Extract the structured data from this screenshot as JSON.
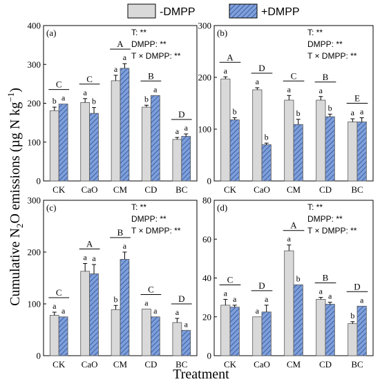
{
  "figure": {
    "legend": [
      {
        "label": "-DMPP",
        "fill": "#d9d9d9",
        "pattern": "solid"
      },
      {
        "label": "+DMPP",
        "fill": "#7f9fd9",
        "pattern": "hatch"
      }
    ],
    "ylabel_prefix": "Cumulative N",
    "ylabel_sub": "2",
    "ylabel_mid": "O emissions (µg N kg",
    "ylabel_sup": "−1",
    "ylabel_suffix": ")",
    "xlabel": "Treatment"
  },
  "chart_data": [
    {
      "type": "bar",
      "panel": "(a)",
      "categories": [
        "CK",
        "CaO",
        "CM",
        "CD",
        "BC"
      ],
      "series": [
        {
          "name": "-DMPP",
          "values": [
            181,
            202,
            258,
            190,
            107
          ],
          "errors": [
            9,
            10,
            14,
            5,
            5
          ],
          "letters": [
            "b",
            "a",
            "a",
            "b",
            "a"
          ]
        },
        {
          "name": "+DMPP",
          "values": [
            198,
            174,
            290,
            220,
            115
          ],
          "errors": [
            0,
            15,
            12,
            0,
            6
          ],
          "letters": [
            "a",
            "b",
            "a",
            "a",
            "a"
          ]
        }
      ],
      "group_letters": [
        "C",
        "C",
        "A",
        "B",
        "D"
      ],
      "ylim": [
        0,
        400
      ],
      "yticks": [
        0,
        100,
        200,
        300,
        400
      ],
      "stats": [
        "T: **",
        "DMPP: **",
        "T × DMPP: **"
      ]
    },
    {
      "type": "bar",
      "panel": "(b)",
      "categories": [
        "CK",
        "CaO",
        "CM",
        "CD",
        "BC"
      ],
      "series": [
        {
          "name": "-DMPP",
          "values": [
            197,
            176,
            156,
            156,
            114
          ],
          "errors": [
            4,
            4,
            9,
            7,
            6
          ],
          "letters": [
            "a",
            "a",
            "a",
            "a",
            "a"
          ]
        },
        {
          "name": "+DMPP",
          "values": [
            118,
            70,
            109,
            124,
            114
          ],
          "errors": [
            4,
            3,
            10,
            5,
            8
          ],
          "letters": [
            "b",
            "b",
            "b",
            "b",
            "a"
          ]
        }
      ],
      "group_letters": [
        "A",
        "D",
        "C",
        "B",
        "E"
      ],
      "ylim": [
        0,
        300
      ],
      "yticks": [
        0,
        100,
        200,
        300
      ],
      "stats": [
        "T: **",
        "DMPP: **",
        "T × DMPP: **"
      ]
    },
    {
      "type": "bar",
      "panel": "(c)",
      "categories": [
        "CK",
        "CaO",
        "CM",
        "CD",
        "BC"
      ],
      "series": [
        {
          "name": "-DMPP",
          "values": [
            78,
            163,
            89,
            90,
            64
          ],
          "errors": [
            6,
            15,
            8,
            0,
            8
          ],
          "letters": [
            "a",
            "a",
            "b",
            "a",
            "a"
          ]
        },
        {
          "name": "+DMPP",
          "values": [
            75,
            158,
            186,
            75,
            49
          ],
          "errors": [
            0,
            18,
            14,
            0,
            0
          ],
          "letters": [
            "a",
            "a",
            "a",
            "a",
            "a"
          ]
        }
      ],
      "group_letters": [
        "C",
        "A",
        "B",
        "C",
        "D"
      ],
      "ylim": [
        0,
        300
      ],
      "yticks": [
        0,
        100,
        200,
        300
      ],
      "stats": [
        "T: **",
        "DMPP: **",
        "T × DMPP: **"
      ]
    },
    {
      "type": "bar",
      "panel": "(d)",
      "categories": [
        "CK",
        "CaO",
        "CM",
        "CD",
        "BC"
      ],
      "series": [
        {
          "name": "-DMPP",
          "values": [
            26,
            20,
            54,
            29,
            16.5
          ],
          "errors": [
            3,
            0,
            3,
            1,
            1
          ],
          "letters": [
            "a",
            "a",
            "a",
            "a",
            "b"
          ]
        },
        {
          "name": "+DMPP",
          "values": [
            25,
            22.5,
            36.5,
            26.5,
            25.5
          ],
          "errors": [
            1,
            3.5,
            0,
            1,
            0
          ],
          "letters": [
            "a",
            "a",
            "b",
            "a",
            "a"
          ]
        }
      ],
      "group_letters": [
        "C",
        "D",
        "A",
        "B",
        "D"
      ],
      "ylim": [
        0,
        80
      ],
      "yticks": [
        0,
        20,
        40,
        60,
        80
      ],
      "stats": [
        "T: **",
        "DMPP: **",
        "T × DMPP: **"
      ]
    }
  ]
}
